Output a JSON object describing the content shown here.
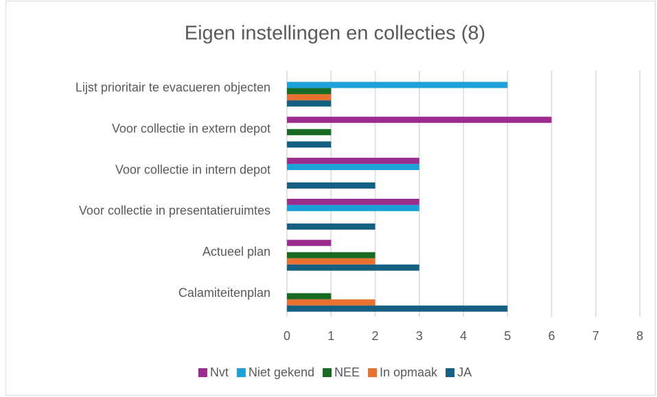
{
  "chart_data": {
    "type": "barh",
    "title": "Eigen instellingen en collecties (8)",
    "categories": [
      "Lijst prioritair te evacueren objecten",
      "Voor collectie in extern depot",
      "Voor collectie in intern depot",
      "Voor collectie in presentatieruimtes",
      "Actueel plan",
      "Calamiteitenplan"
    ],
    "series": [
      {
        "name": "Nvt",
        "color": "#9b2d8e",
        "values": [
          0,
          6,
          3,
          3,
          1,
          0
        ]
      },
      {
        "name": "Niet gekend",
        "color": "#1ba1d8",
        "values": [
          5,
          0,
          3,
          3,
          0,
          0
        ]
      },
      {
        "name": "NEE",
        "color": "#196b24",
        "values": [
          1,
          1,
          0,
          0,
          2,
          1
        ]
      },
      {
        "name": "In opmaak",
        "color": "#e97132",
        "values": [
          1,
          0,
          0,
          0,
          2,
          2
        ]
      },
      {
        "name": "JA",
        "color": "#156082",
        "values": [
          1,
          1,
          2,
          2,
          3,
          5
        ]
      }
    ],
    "xlim": [
      0,
      8
    ],
    "xticks": [
      0,
      1,
      2,
      3,
      4,
      5,
      6,
      7,
      8
    ],
    "grid": true,
    "legend": "bottom"
  }
}
